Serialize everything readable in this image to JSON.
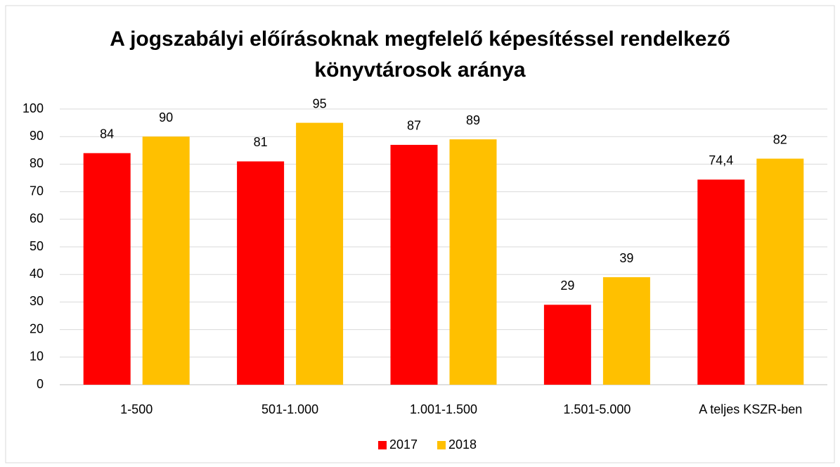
{
  "chart_data": {
    "type": "bar",
    "title": "A jogszabályi előírásoknak megfelelő képesítéssel rendelkező könyvtárosok aránya",
    "categories": [
      "1-500",
      "501-1.000",
      "1.001-1.500",
      "1.501-5.000",
      "A teljes KSZR-ben"
    ],
    "series": [
      {
        "name": "2017",
        "color": "#ff0000",
        "values": [
          84,
          81,
          87,
          29,
          74.4
        ],
        "value_labels": [
          "84",
          "81",
          "87",
          "29",
          "74,4"
        ]
      },
      {
        "name": "2018",
        "color": "#ffc000",
        "values": [
          90,
          95,
          89,
          39,
          82
        ]
      }
    ],
    "ylim": [
      0,
      100
    ],
    "yticks": [
      0,
      10,
      20,
      30,
      40,
      50,
      60,
      70,
      80,
      90,
      100
    ],
    "grid": true,
    "legend": "bottom"
  }
}
